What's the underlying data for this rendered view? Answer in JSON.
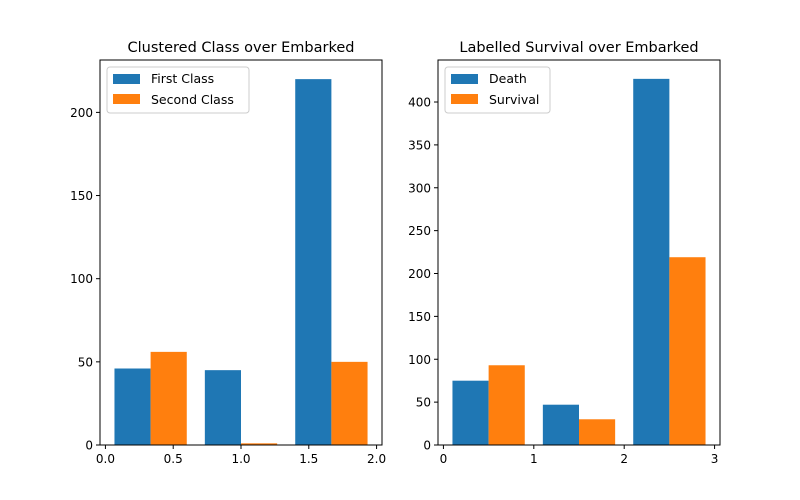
{
  "chart_data": [
    {
      "type": "bar",
      "title": "Clustered Class over Embarked",
      "xlabel": "",
      "ylabel": "",
      "xlim": [
        -0.04,
        2.04
      ],
      "ylim": [
        0,
        231.5
      ],
      "xticks": [
        0.0,
        0.5,
        1.0,
        1.5,
        2.0
      ],
      "xtick_labels": [
        "0.0",
        "0.5",
        "1.0",
        "1.5",
        "2.0"
      ],
      "yticks": [
        0,
        50,
        100,
        150,
        200
      ],
      "ytick_labels": [
        "0",
        "50",
        "100",
        "150",
        "200"
      ],
      "grid": false,
      "legend_position": "upper-left",
      "bar_width": 0.2667,
      "series": [
        {
          "name": "First Class",
          "color": "#1f77b4",
          "x": [
            0.0667,
            0.7333,
            1.4
          ],
          "values": [
            46,
            45,
            220
          ]
        },
        {
          "name": "Second Class",
          "color": "#ff7f0e",
          "x": [
            0.3333,
            1.0,
            1.6667
          ],
          "values": [
            56,
            1,
            50
          ]
        }
      ]
    },
    {
      "type": "bar",
      "title": "Labelled Survival over Embarked",
      "xlabel": "",
      "ylabel": "",
      "xlim": [
        -0.06,
        3.06
      ],
      "ylim": [
        0,
        449
      ],
      "xticks": [
        0,
        1,
        2,
        3
      ],
      "xtick_labels": [
        "0",
        "1",
        "2",
        "3"
      ],
      "yticks": [
        0,
        50,
        100,
        150,
        200,
        250,
        300,
        350,
        400
      ],
      "ytick_labels": [
        "0",
        "50",
        "100",
        "150",
        "200",
        "250",
        "300",
        "350",
        "400"
      ],
      "grid": false,
      "legend_position": "upper-left",
      "bar_width": 0.4,
      "series": [
        {
          "name": "Death",
          "color": "#1f77b4",
          "x": [
            0.1,
            1.1,
            2.1
          ],
          "values": [
            75,
            47,
            427
          ]
        },
        {
          "name": "Survival",
          "color": "#ff7f0e",
          "x": [
            0.5,
            1.5,
            2.5
          ],
          "values": [
            93,
            30,
            219
          ]
        }
      ]
    }
  ]
}
